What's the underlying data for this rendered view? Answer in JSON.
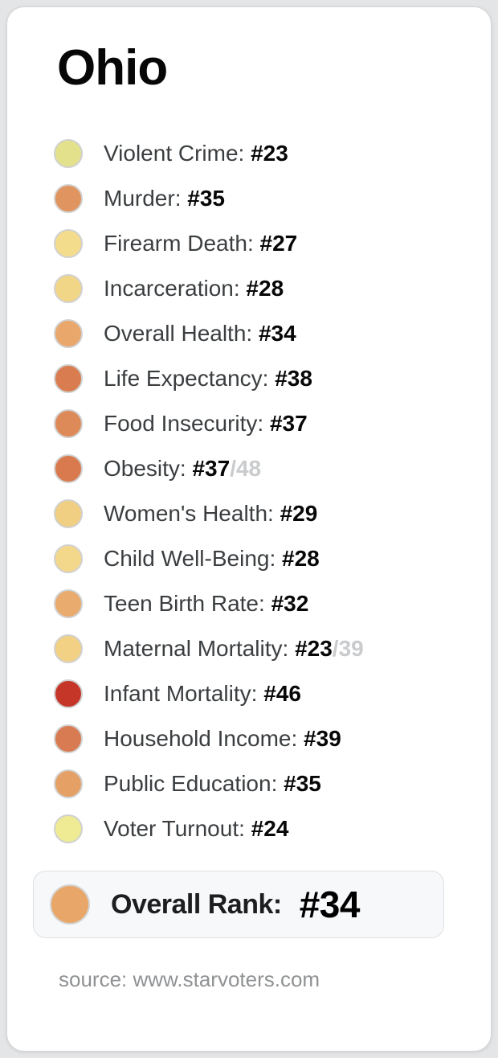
{
  "page": {
    "background_color": "#e4e5e6",
    "card_color": "#ffffff"
  },
  "title": "Ohio",
  "metrics": [
    {
      "label": "Violent Crime",
      "rank": "#23",
      "suffix": "",
      "color": "#e3e18c"
    },
    {
      "label": "Murder",
      "rank": "#35",
      "suffix": "",
      "color": "#e0945f"
    },
    {
      "label": "Firearm Death",
      "rank": "#27",
      "suffix": "",
      "color": "#f4dc8d"
    },
    {
      "label": "Incarceration",
      "rank": "#28",
      "suffix": "",
      "color": "#f2d687"
    },
    {
      "label": "Overall Health",
      "rank": "#34",
      "suffix": "",
      "color": "#e9a76c"
    },
    {
      "label": "Life Expectancy",
      "rank": "#38",
      "suffix": "",
      "color": "#d97d50"
    },
    {
      "label": "Food Insecurity",
      "rank": "#37",
      "suffix": "",
      "color": "#dd8a58"
    },
    {
      "label": "Obesity",
      "rank": "#37",
      "suffix": "/48",
      "color": "#d87a4e"
    },
    {
      "label": "Women's Health",
      "rank": "#29",
      "suffix": "",
      "color": "#f0cf82"
    },
    {
      "label": "Child Well-Being",
      "rank": "#28",
      "suffix": "",
      "color": "#f3d78b"
    },
    {
      "label": "Teen Birth Rate",
      "rank": "#32",
      "suffix": "",
      "color": "#e9ab6e"
    },
    {
      "label": "Maternal Mortality",
      "rank": "#23",
      "suffix": "/39",
      "color": "#f2d084"
    },
    {
      "label": "Infant Mortality",
      "rank": "#46",
      "suffix": "",
      "color": "#c53528"
    },
    {
      "label": "Household Income",
      "rank": "#39",
      "suffix": "",
      "color": "#d97b52"
    },
    {
      "label": "Public Education",
      "rank": "#35",
      "suffix": "",
      "color": "#e5a165"
    },
    {
      "label": "Voter Turnout",
      "rank": "#24",
      "suffix": "",
      "color": "#eeeb94"
    }
  ],
  "overall": {
    "label": "Overall Rank:",
    "value": "#34",
    "color": "#e8a769",
    "box_background": "#f7f8fa"
  },
  "source": "source: www.starvoters.com",
  "muted_suffix_color": "#c9cbcd"
}
